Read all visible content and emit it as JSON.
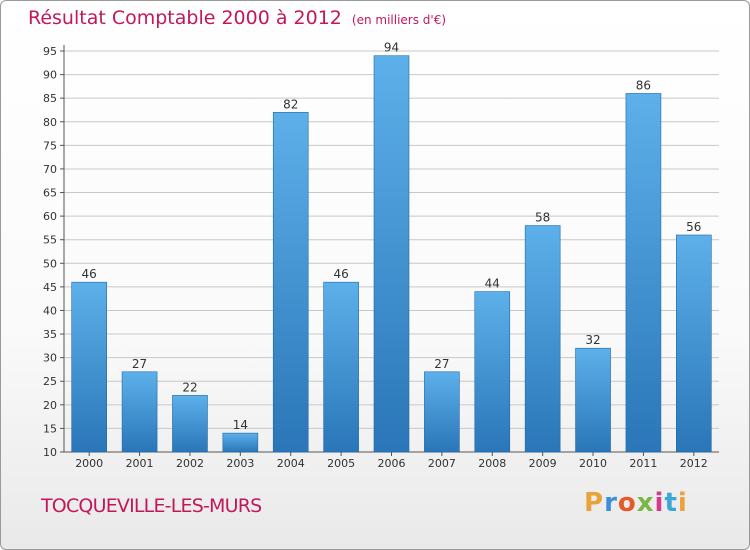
{
  "page": {
    "title": "Résultat Comptable 2000 à 2012",
    "subtitle": "(en milliers d'€)",
    "commune": "TOCQUEVILLE-LES-MURS",
    "logo_letters": [
      "P",
      "r",
      "o",
      "x",
      "i",
      "t",
      "i"
    ],
    "logo_colors": [
      "#e8a33a",
      "#3a8fd6",
      "#e45a2a",
      "#7ab648",
      "#d63a8c",
      "#3aa7d6",
      "#e8a33a"
    ]
  },
  "chart_data": {
    "type": "bar",
    "title": "Résultat Comptable 2000 à 2012",
    "subtitle": "(en milliers d'€)",
    "categories": [
      "2000",
      "2001",
      "2002",
      "2003",
      "2004",
      "2005",
      "2006",
      "2007",
      "2008",
      "2009",
      "2010",
      "2011",
      "2012"
    ],
    "values": [
      46,
      27,
      22,
      14,
      82,
      46,
      94,
      27,
      44,
      58,
      32,
      86,
      56
    ],
    "data_labels": [
      "46",
      "27",
      "22",
      "14",
      "82",
      "46",
      "94",
      "27",
      "44",
      "58",
      "32",
      "86",
      "56"
    ],
    "ylim": [
      10,
      95
    ],
    "yticks": [
      10,
      15,
      20,
      25,
      30,
      35,
      40,
      45,
      50,
      55,
      60,
      65,
      70,
      75,
      80,
      85,
      90,
      95
    ],
    "grid": true,
    "colors": {
      "bar_top": "#5db0ea",
      "bar_bottom": "#2a76b8",
      "axis": "#555555",
      "grid": "#c8c8c8",
      "text": "#333333",
      "accent": "#c2185b"
    }
  }
}
